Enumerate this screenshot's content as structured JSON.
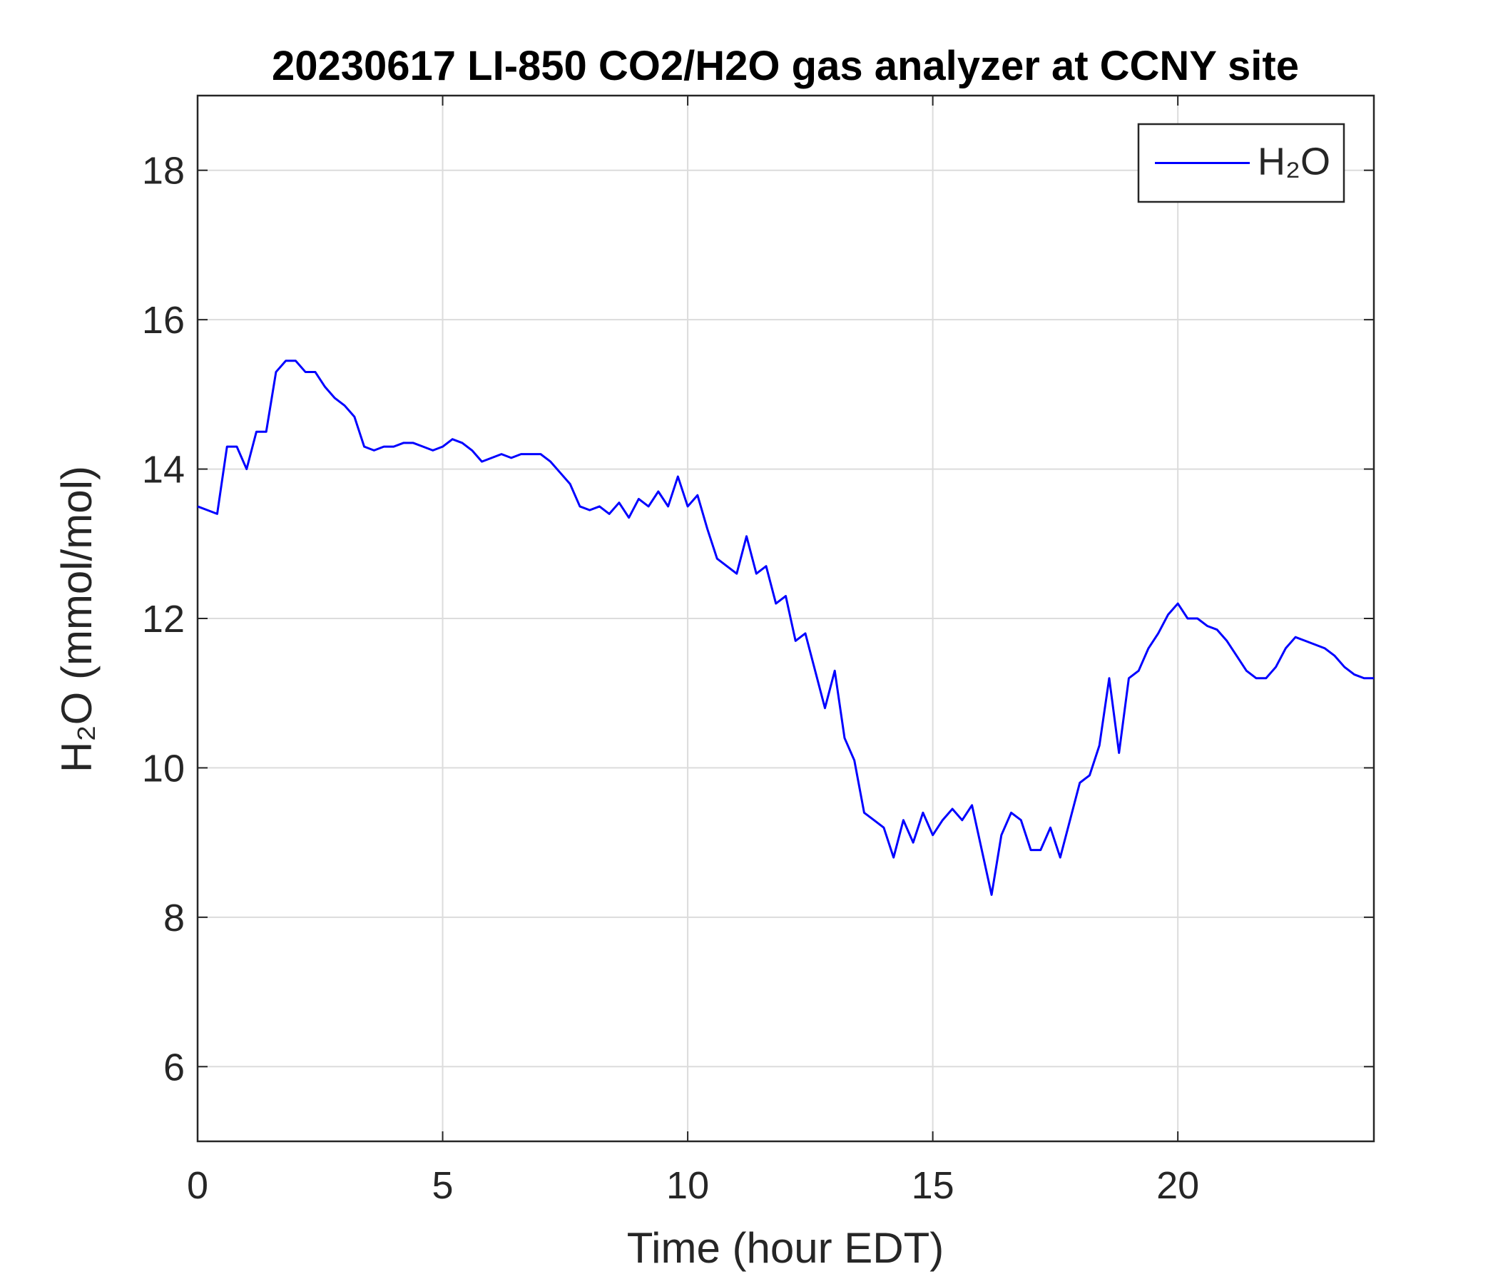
{
  "chart_data": {
    "type": "line",
    "title": "20230617 LI-850 CO2/H2O gas analyzer at CCNY site",
    "x_label": "Time (hour EDT)",
    "y_label": "H₂O (mmol/mol)",
    "x": [
      0,
      0.2,
      0.4,
      0.6,
      0.8,
      1.0,
      1.2,
      1.4,
      1.6,
      1.8,
      2.0,
      2.2,
      2.4,
      2.6,
      2.8,
      3.0,
      3.2,
      3.4,
      3.6,
      3.8,
      4.0,
      4.2,
      4.4,
      4.6,
      4.8,
      5.0,
      5.2,
      5.4,
      5.6,
      5.8,
      6.0,
      6.2,
      6.4,
      6.6,
      6.8,
      7.0,
      7.2,
      7.4,
      7.6,
      7.8,
      8.0,
      8.2,
      8.4,
      8.6,
      8.8,
      9.0,
      9.2,
      9.4,
      9.6,
      9.8,
      10.0,
      10.2,
      10.4,
      10.6,
      10.8,
      11.0,
      11.2,
      11.4,
      11.6,
      11.8,
      12.0,
      12.2,
      12.4,
      12.6,
      12.8,
      13.0,
      13.2,
      13.4,
      13.6,
      13.8,
      14.0,
      14.2,
      14.4,
      14.6,
      14.8,
      15.0,
      15.2,
      15.4,
      15.6,
      15.8,
      16.0,
      16.2,
      16.4,
      16.6,
      16.8,
      17.0,
      17.2,
      17.4,
      17.6,
      17.8,
      18.0,
      18.2,
      18.4,
      18.6,
      18.8,
      19.0,
      19.2,
      19.4,
      19.6,
      19.8,
      20.0,
      20.2,
      20.4,
      20.6,
      20.8,
      21.0,
      21.2,
      21.4,
      21.6,
      21.8,
      22.0,
      22.2,
      22.4,
      22.6,
      22.8,
      23.0,
      23.2,
      23.4,
      23.6,
      23.8,
      24.0
    ],
    "series": [
      {
        "name": "H₂O",
        "color": "#0000ff",
        "values": [
          13.5,
          13.45,
          13.4,
          14.3,
          14.3,
          14.0,
          14.5,
          14.5,
          15.3,
          15.45,
          15.45,
          15.3,
          15.3,
          15.1,
          14.95,
          14.85,
          14.7,
          14.3,
          14.25,
          14.3,
          14.3,
          14.35,
          14.35,
          14.3,
          14.25,
          14.3,
          14.4,
          14.35,
          14.25,
          14.1,
          14.15,
          14.2,
          14.15,
          14.2,
          14.2,
          14.2,
          14.1,
          13.95,
          13.8,
          13.5,
          13.45,
          13.5,
          13.4,
          13.55,
          13.35,
          13.6,
          13.5,
          13.7,
          13.5,
          13.9,
          13.5,
          13.65,
          13.2,
          12.8,
          12.7,
          12.6,
          13.1,
          12.6,
          12.7,
          12.2,
          12.3,
          11.7,
          11.8,
          11.3,
          10.8,
          11.3,
          10.4,
          10.1,
          9.4,
          9.3,
          9.2,
          8.8,
          9.3,
          9.0,
          9.4,
          9.1,
          9.3,
          9.45,
          9.3,
          9.5,
          8.9,
          8.3,
          9.1,
          9.4,
          9.3,
          8.9,
          8.9,
          9.2,
          8.8,
          9.3,
          9.8,
          9.9,
          10.3,
          11.2,
          10.2,
          11.2,
          11.3,
          11.6,
          11.8,
          12.05,
          12.2,
          12.0,
          12.0,
          11.9,
          11.85,
          11.7,
          11.5,
          11.3,
          11.2,
          11.2,
          11.35,
          11.6,
          11.75,
          11.7,
          11.65,
          11.6,
          11.5,
          11.35,
          11.25,
          11.2,
          11.2
        ]
      }
    ],
    "xlim": [
      0,
      24
    ],
    "ylim": [
      5,
      19
    ],
    "xticks": [
      0,
      5,
      10,
      15,
      20
    ],
    "yticks": [
      6,
      8,
      10,
      12,
      14,
      16,
      18
    ],
    "grid": true,
    "legend": "northeast"
  }
}
